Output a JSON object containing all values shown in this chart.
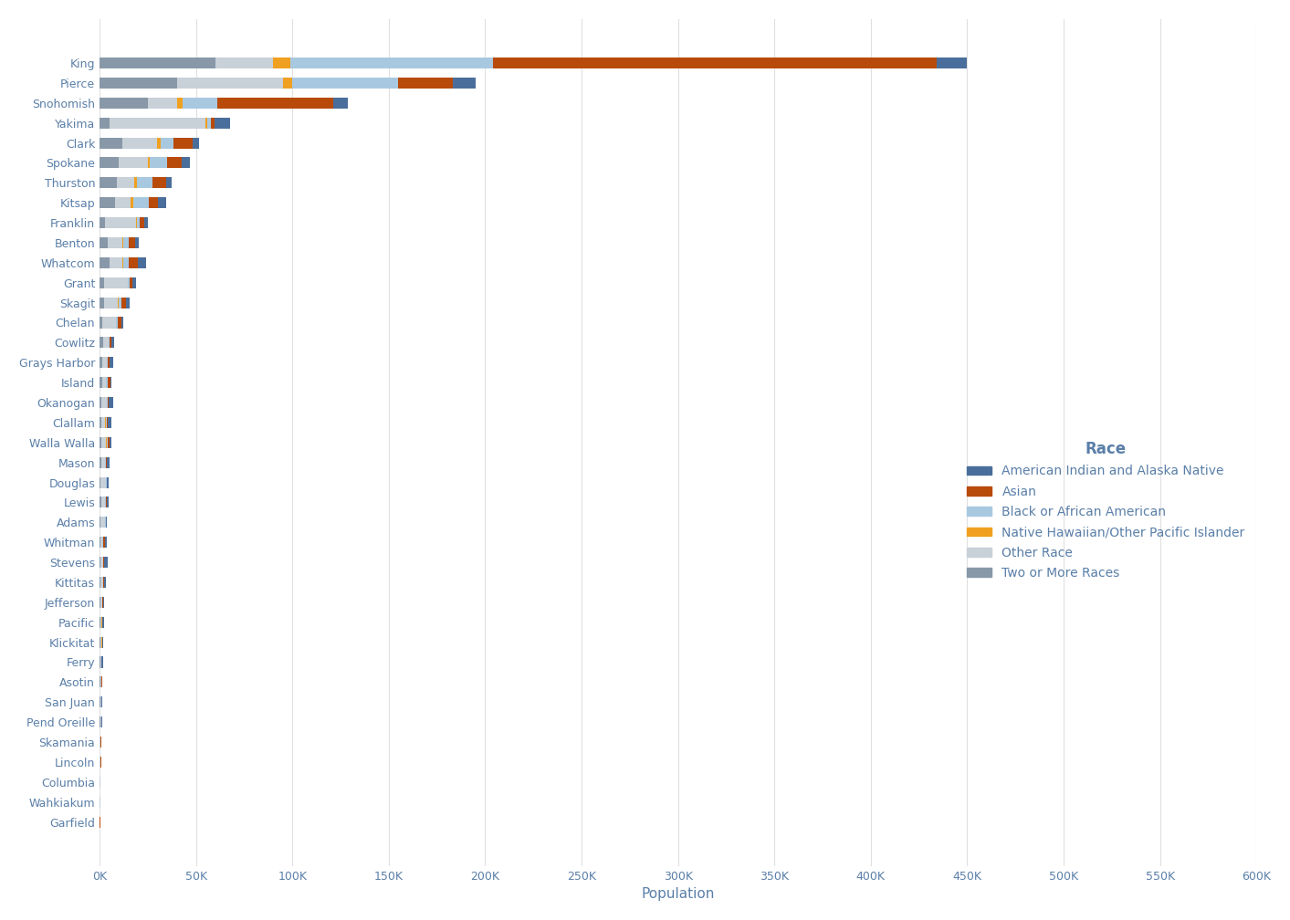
{
  "counties": [
    "King",
    "Pierce",
    "Snohomish",
    "Yakima",
    "Clark",
    "Spokane",
    "Thurston",
    "Kitsap",
    "Franklin",
    "Benton",
    "Whatcom",
    "Grant",
    "Skagit",
    "Chelan",
    "Cowlitz",
    "Grays Harbor",
    "Island",
    "Okanogan",
    "Clallam",
    "Walla Walla",
    "Mason",
    "Douglas",
    "Lewis",
    "Adams",
    "Whitman",
    "Stevens",
    "Kittitas",
    "Jefferson",
    "Pacific",
    "Klickitat",
    "Ferry",
    "Asotin",
    "San Juan",
    "Pend Oreille",
    "Skamania",
    "Lincoln",
    "Columbia",
    "Wahkiakum",
    "Garfield"
  ],
  "races": [
    "Two or More Races",
    "Other Race",
    "Native Hawaiian/Other Pacific Islander",
    "Black or African American",
    "Asian",
    "American Indian and Alaska Native"
  ],
  "legend_races": [
    "American Indian and Alaska Native",
    "Asian",
    "Black or African American",
    "Native Hawaiian/Other Pacific Islander",
    "Other Race",
    "Two or More Races"
  ],
  "colors": [
    "#8898a8",
    "#c8d0d8",
    "#f0a020",
    "#a8c8e0",
    "#b84a0a",
    "#4a6e9b"
  ],
  "legend_colors": [
    "#4a6e9b",
    "#b84a0a",
    "#a8c8e0",
    "#f0a020",
    "#c8d0d8",
    "#8898a8"
  ],
  "data": {
    "King": [
      60000,
      30000,
      9000,
      105000,
      230000,
      16000
    ],
    "Pierce": [
      40000,
      55000,
      5000,
      55000,
      28000,
      12000
    ],
    "Snohomish": [
      25000,
      15000,
      3000,
      18000,
      60000,
      8000
    ],
    "Yakima": [
      5000,
      50000,
      800,
      2000,
      2000,
      8000
    ],
    "Clark": [
      12000,
      18000,
      1500,
      7000,
      10000,
      3000
    ],
    "Spokane": [
      10000,
      15000,
      800,
      9000,
      8000,
      4000
    ],
    "Thurston": [
      9000,
      9000,
      1500,
      8000,
      7000,
      3000
    ],
    "Kitsap": [
      8000,
      8000,
      1500,
      8000,
      5000,
      4000
    ],
    "Franklin": [
      3000,
      16000,
      500,
      1500,
      2000,
      2000
    ],
    "Benton": [
      4000,
      8000,
      400,
      2500,
      3500,
      2000
    ],
    "Whatcom": [
      5000,
      7000,
      400,
      2500,
      5000,
      4000
    ],
    "Grant": [
      2500,
      12000,
      300,
      800,
      1500,
      2000
    ],
    "Skagit": [
      2500,
      7000,
      300,
      1500,
      2500,
      2000
    ],
    "Chelan": [
      1500,
      7000,
      200,
      700,
      1800,
      1000
    ],
    "Cowlitz": [
      2000,
      2500,
      150,
      700,
      1000,
      1200
    ],
    "Grays Harbor": [
      1200,
      2500,
      150,
      600,
      600,
      1800
    ],
    "Island": [
      1200,
      2000,
      200,
      900,
      1200,
      800
    ],
    "Okanogan": [
      800,
      3000,
      150,
      300,
      400,
      2500
    ],
    "Clallam": [
      1000,
      2000,
      120,
      400,
      500,
      2000
    ],
    "Walla Walla": [
      700,
      2800,
      150,
      600,
      900,
      800
    ],
    "Mason": [
      900,
      2000,
      100,
      400,
      500,
      1500
    ],
    "Douglas": [
      500,
      2800,
      80,
      200,
      400,
      600
    ],
    "Lewis": [
      700,
      2000,
      100,
      400,
      500,
      1200
    ],
    "Adams": [
      400,
      2500,
      80,
      200,
      300,
      500
    ],
    "Whitman": [
      500,
      1000,
      100,
      400,
      1000,
      800
    ],
    "Stevens": [
      600,
      1200,
      60,
      150,
      200,
      1800
    ],
    "Kittitas": [
      450,
      1200,
      80,
      200,
      400,
      800
    ],
    "Jefferson": [
      400,
      900,
      60,
      150,
      300,
      700
    ],
    "Pacific": [
      350,
      800,
      40,
      100,
      150,
      700
    ],
    "Klickitat": [
      320,
      800,
      40,
      100,
      150,
      600
    ],
    "Ferry": [
      280,
      500,
      30,
      70,
      80,
      900
    ],
    "Asotin": [
      280,
      600,
      35,
      100,
      150,
      400
    ],
    "San Juan": [
      280,
      500,
      35,
      100,
      200,
      200
    ],
    "Pend Oreille": [
      240,
      450,
      20,
      50,
      70,
      700
    ],
    "Skamania": [
      200,
      400,
      20,
      50,
      70,
      400
    ],
    "Lincoln": [
      170,
      400,
      15,
      40,
      60,
      200
    ],
    "Columbia": [
      130,
      280,
      10,
      30,
      45,
      150
    ],
    "Wahkiakum": [
      100,
      220,
      8,
      20,
      30,
      150
    ],
    "Garfield": [
      60,
      120,
      5,
      12,
      20,
      100
    ]
  },
  "xlabel": "Population",
  "legend_title": "Race",
  "xlim": [
    0,
    600000
  ],
  "xtick_values": [
    0,
    50000,
    100000,
    150000,
    200000,
    250000,
    300000,
    350000,
    400000,
    450000,
    500000,
    550000,
    600000
  ],
  "xtick_labels": [
    "0K",
    "50K",
    "100K",
    "150K",
    "200K",
    "250K",
    "300K",
    "350K",
    "400K",
    "450K",
    "500K",
    "550K",
    "600K"
  ],
  "background_color": "#ffffff",
  "label_color": "#5a7fa8",
  "legend_text_color": "#5a7fa8"
}
